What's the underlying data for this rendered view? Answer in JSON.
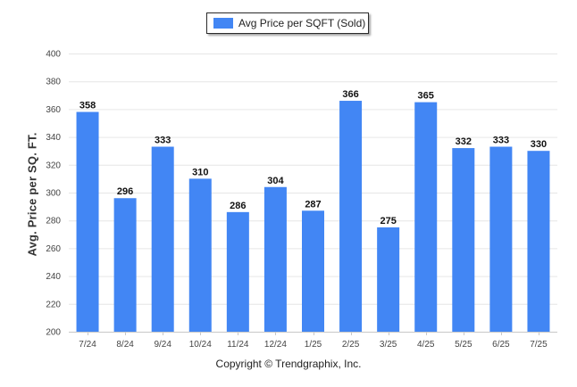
{
  "chart_data": {
    "type": "bar",
    "legend": {
      "label": "Avg Price per SQFT (Sold)",
      "position": "top-center"
    },
    "ylabel": "Avg. Price per SQ. FT.",
    "xlabel": "",
    "ylim": [
      200,
      400
    ],
    "yticks": [
      200,
      220,
      240,
      260,
      280,
      300,
      320,
      340,
      360,
      380,
      400
    ],
    "grid": true,
    "categories": [
      "7/24",
      "8/24",
      "9/24",
      "10/24",
      "11/24",
      "12/24",
      "1/25",
      "2/25",
      "3/25",
      "4/25",
      "5/25",
      "6/25",
      "7/25"
    ],
    "series": [
      {
        "name": "Avg Price per SQFT (Sold)",
        "values": [
          358,
          296,
          333,
          310,
          286,
          304,
          287,
          366,
          275,
          365,
          332,
          333,
          330
        ],
        "color": "#4286f4"
      }
    ],
    "data_labels": [
      "358",
      "296",
      "333",
      "310",
      "286",
      "304",
      "287",
      "366",
      "275",
      "365",
      "332",
      "333",
      "330"
    ]
  },
  "footer": {
    "copyright": "Copyright © Trendgraphix, Inc."
  }
}
